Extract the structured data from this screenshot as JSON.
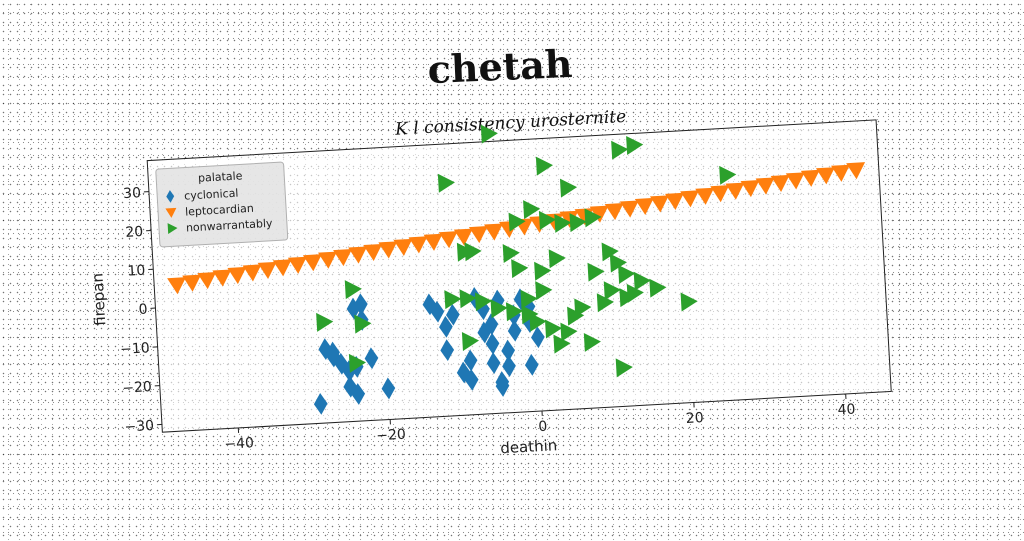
{
  "figure_title": "chetah",
  "chart_data": {
    "type": "scatter",
    "title": "K l consistency urosternite",
    "xlabel": "deathin",
    "ylabel": "firepan",
    "xlim": [
      -50,
      46
    ],
    "ylim": [
      -32,
      38
    ],
    "xticks": [
      -40,
      -20,
      0,
      20,
      40
    ],
    "yticks": [
      -30,
      -20,
      -10,
      0,
      10,
      20,
      30
    ],
    "grid": false,
    "legend": {
      "title": "palatale",
      "placement": "upper-left"
    },
    "series": [
      {
        "name": "cyclonical",
        "marker": "diamond",
        "color": "#1f77b4",
        "points": [
          [
            -29,
            -27
          ],
          [
            -28,
            -13
          ],
          [
            -27,
            -15
          ],
          [
            -26,
            -17
          ],
          [
            -25,
            -19
          ],
          [
            -24,
            -25
          ],
          [
            -25,
            -23
          ],
          [
            -24,
            -3
          ],
          [
            -23,
            -2
          ],
          [
            -23,
            -6
          ],
          [
            -22,
            -16
          ],
          [
            -20,
            -24
          ],
          [
            -14,
            -3
          ],
          [
            -13,
            -5
          ],
          [
            -12,
            -9
          ],
          [
            -12,
            -15
          ],
          [
            -10,
            -21
          ],
          [
            -9,
            -23
          ],
          [
            -9,
            -18
          ],
          [
            -8,
            -2
          ],
          [
            -7,
            -5
          ],
          [
            -7,
            -11
          ],
          [
            -6,
            -14
          ],
          [
            -6,
            -19
          ],
          [
            -5,
            -24
          ],
          [
            -5,
            -25
          ],
          [
            -4,
            -16
          ],
          [
            -4,
            -20
          ],
          [
            -3,
            -7
          ],
          [
            -3,
            -11
          ],
          [
            -2,
            -3
          ],
          [
            -1,
            -5
          ],
          [
            -1,
            -9
          ],
          [
            0,
            -13
          ],
          [
            -1,
            -20
          ],
          [
            -5,
            -3
          ],
          [
            -11,
            -6
          ],
          [
            -27,
            -14
          ],
          [
            -24,
            -18
          ],
          [
            -6,
            -9
          ]
        ]
      },
      {
        "name": "leptocardian",
        "marker": "triangle-down",
        "color": "#ff7f0e",
        "x_start": -47,
        "x_step": 2,
        "count": 46,
        "slope": 0.22,
        "intercept": 16
      },
      {
        "name": "nonwarrantably",
        "marker": "triangle-right",
        "color": "#2ca02c",
        "points": [
          [
            -5,
            40
          ],
          [
            -11,
            28
          ],
          [
            2,
            31
          ],
          [
            5,
            25
          ],
          [
            12,
            34
          ],
          [
            14,
            35
          ],
          [
            26,
            26
          ],
          [
            -2,
            17
          ],
          [
            0,
            20
          ],
          [
            2,
            17
          ],
          [
            4,
            16
          ],
          [
            6,
            16
          ],
          [
            8,
            17
          ],
          [
            -9,
            10
          ],
          [
            -8,
            10
          ],
          [
            -3,
            9
          ],
          [
            -2,
            5
          ],
          [
            1,
            4
          ],
          [
            3,
            7
          ],
          [
            8,
            3
          ],
          [
            10,
            8
          ],
          [
            11,
            5
          ],
          [
            12,
            2
          ],
          [
            14,
            0
          ],
          [
            16,
            -2
          ],
          [
            20,
            -6
          ],
          [
            -11,
            -2
          ],
          [
            -9,
            -2
          ],
          [
            -7,
            -3
          ],
          [
            -5,
            -5
          ],
          [
            -3,
            -6
          ],
          [
            -1,
            -7
          ],
          [
            0,
            -9
          ],
          [
            2,
            -11
          ],
          [
            4,
            -12
          ],
          [
            3,
            -15
          ],
          [
            -28,
            -6
          ],
          [
            -23,
            -7
          ],
          [
            -24,
            2
          ],
          [
            -9,
            -13
          ],
          [
            -24,
            -17
          ],
          [
            7,
            -15
          ],
          [
            11,
            -22
          ],
          [
            10,
            -2
          ],
          [
            12,
            -4
          ],
          [
            5,
            -8
          ],
          [
            -1,
            -3
          ],
          [
            1,
            -1
          ],
          [
            9,
            -5
          ],
          [
            13,
            -3
          ],
          [
            6,
            -6
          ]
        ]
      }
    ]
  }
}
